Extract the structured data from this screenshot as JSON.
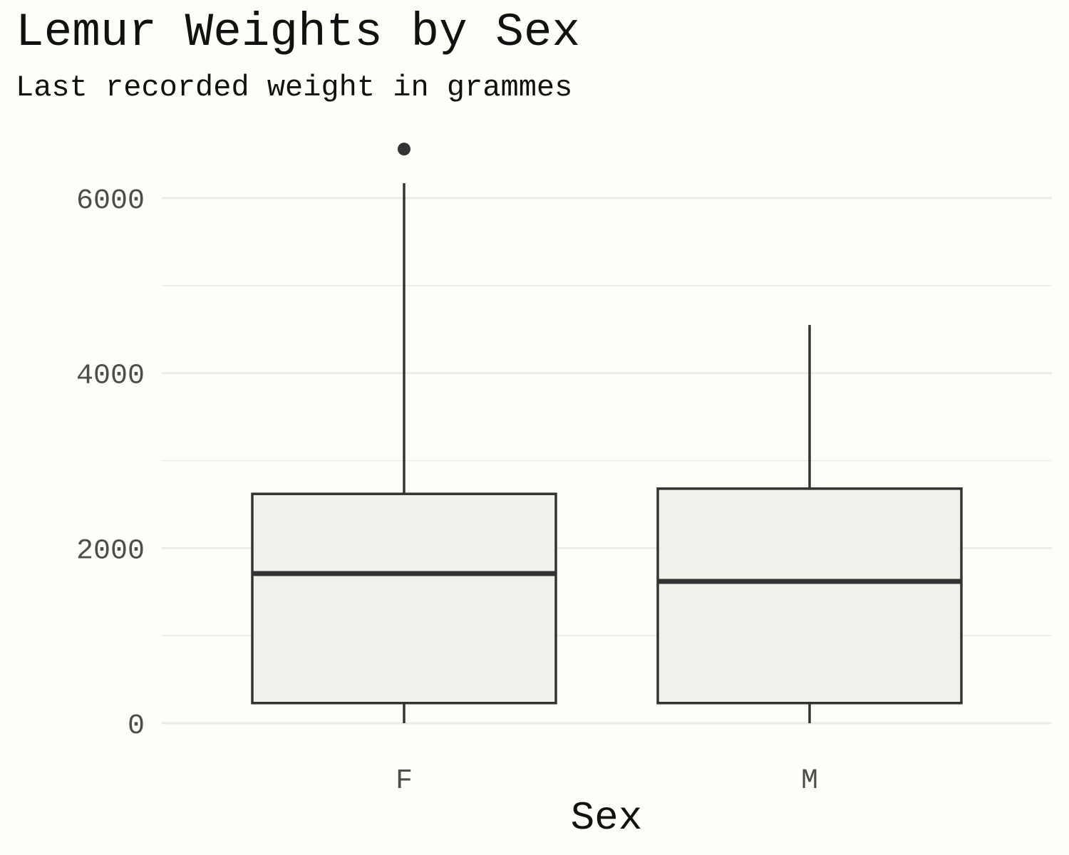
{
  "chart_data": {
    "type": "boxplot",
    "title": "Lemur Weights by Sex",
    "subtitle": "Last recorded weight in grammes",
    "xlabel": "Sex",
    "ylabel": "",
    "categories": [
      "F",
      "M"
    ],
    "ylim": [
      0,
      6900
    ],
    "y_ticks": [
      0,
      2000,
      4000,
      6000
    ],
    "y_tick_labels": [
      "0",
      "2000",
      "4000",
      "6000"
    ],
    "grid": {
      "major_y": true,
      "minor_y": true,
      "vertical": false
    },
    "legend": "none",
    "boxes": [
      {
        "category": "F",
        "min": 0,
        "q1": 230,
        "median": 1710,
        "q3": 2620,
        "max": 6170,
        "outliers": [
          6560
        ]
      },
      {
        "category": "M",
        "min": 0,
        "q1": 230,
        "median": 1620,
        "q3": 2680,
        "max": 4550,
        "outliers": []
      }
    ],
    "colors": {
      "background": "#fefef9",
      "box_fill": "#f1f1ec",
      "box_stroke": "#333333",
      "grid": "#ebebeb"
    }
  }
}
